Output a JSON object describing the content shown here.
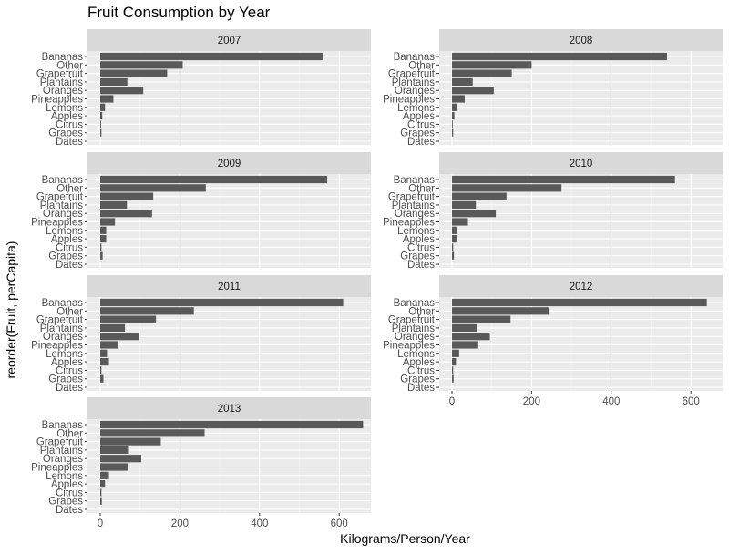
{
  "chart_data": {
    "type": "bar",
    "orientation": "horizontal",
    "title": "Fruit Consumption by Year",
    "xlabel": "Kilograms/Person/Year",
    "ylabel": "reorder(Fruit, perCapita)",
    "categories": [
      "Bananas",
      "Other",
      "Grapefruit",
      "Plantains",
      "Oranges",
      "Pineapples",
      "Lemons",
      "Apples",
      "Citrus",
      "Grapes",
      "Dates"
    ],
    "xlim": [
      0,
      680
    ],
    "xticks": [
      "0",
      "200",
      "400",
      "600"
    ],
    "xtick_values": [
      0,
      200,
      400,
      600
    ],
    "grid": true,
    "bar_color": "#595959",
    "panel_bg": "#ebebeb",
    "strip_bg": "#d9d9d9",
    "panels": [
      {
        "label": "2007",
        "values": [
          560,
          207,
          168,
          68,
          108,
          33,
          12,
          5,
          2,
          3,
          0
        ]
      },
      {
        "label": "2008",
        "values": [
          540,
          200,
          150,
          52,
          105,
          32,
          12,
          6,
          2,
          3,
          0
        ]
      },
      {
        "label": "2009",
        "values": [
          570,
          265,
          133,
          67,
          130,
          37,
          15,
          15,
          3,
          6,
          0
        ]
      },
      {
        "label": "2010",
        "values": [
          560,
          275,
          137,
          60,
          110,
          40,
          13,
          13,
          3,
          5,
          0
        ]
      },
      {
        "label": "2011",
        "values": [
          610,
          235,
          140,
          62,
          97,
          45,
          17,
          22,
          3,
          8,
          0
        ]
      },
      {
        "label": "2012",
        "values": [
          640,
          243,
          147,
          63,
          95,
          66,
          18,
          10,
          3,
          4,
          0
        ]
      },
      {
        "label": "2013",
        "values": [
          660,
          262,
          152,
          72,
          103,
          70,
          22,
          12,
          3,
          4,
          0
        ]
      }
    ]
  }
}
